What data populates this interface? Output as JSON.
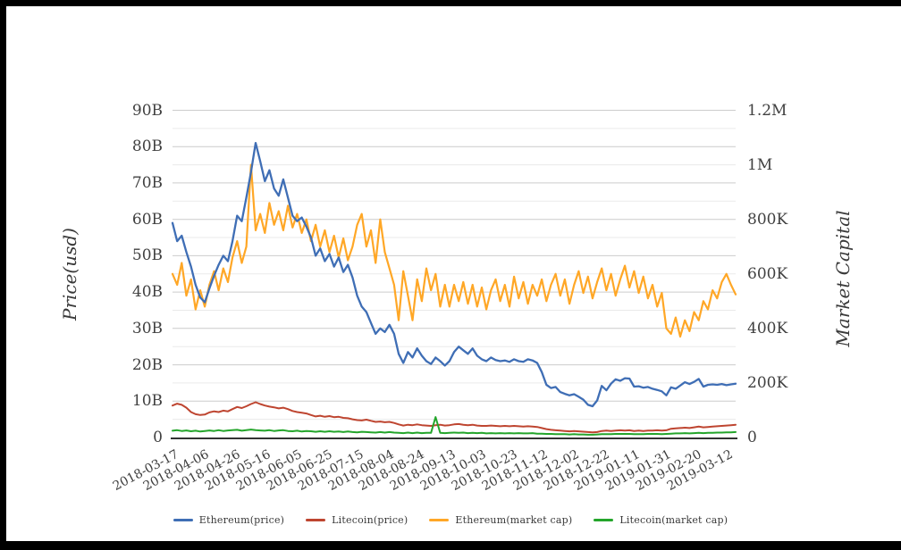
{
  "page": {
    "background": "#ffffff",
    "frame_color": "#000000"
  },
  "chart_data": {
    "type": "line",
    "title": "",
    "x_axis": {
      "start_date": "2018-03-17",
      "end_date": "2019-03-12",
      "tick_interval_days": 20,
      "tick_labels": [
        "2018-03-17",
        "2018-04-06",
        "2018-04-26",
        "2018-05-16",
        "2018-06-05",
        "2018-06-25",
        "2018-07-15",
        "2018-08-04",
        "2018-08-24",
        "2018-09-13",
        "2018-10-03",
        "2018-10-23",
        "2018-11-12",
        "2018-12-02",
        "2018-12-22",
        "2019-01-11",
        "2019-01-31",
        "2019-02-20",
        "2019-03-12"
      ]
    },
    "left_axis": {
      "title": "Price(usd)",
      "max": 90,
      "unit": "B",
      "ticks": [
        {
          "v": 90,
          "label": "90B"
        },
        {
          "v": 80,
          "label": "80B"
        },
        {
          "v": 70,
          "label": "70B"
        },
        {
          "v": 60,
          "label": "60B"
        },
        {
          "v": 50,
          "label": "50B"
        },
        {
          "v": 40,
          "label": "40B"
        },
        {
          "v": 30,
          "label": "30B"
        },
        {
          "v": 20,
          "label": "20B"
        },
        {
          "v": 10,
          "label": "10B"
        },
        {
          "v": 0,
          "label": "0"
        }
      ]
    },
    "right_axis": {
      "title": "Market Capital",
      "max": 1200,
      "unit": "K",
      "ticks": [
        {
          "v": 1200,
          "label": "1.2M"
        },
        {
          "v": 1000,
          "label": "1M"
        },
        {
          "v": 800,
          "label": "800K"
        },
        {
          "v": 600,
          "label": "600K"
        },
        {
          "v": 400,
          "label": "400K"
        },
        {
          "v": 200,
          "label": "200K"
        },
        {
          "v": 0,
          "label": "0"
        }
      ]
    },
    "grid": {
      "minor_step": 5,
      "major_step": 10,
      "major_color": "#cccccc",
      "minor_color": "#eaeaea",
      "axis_line_color": "#333333"
    },
    "sample_interval_days": 3,
    "series": [
      {
        "name": "Ethereum(price)",
        "axis": "left",
        "color": "#3F6EB5",
        "width": 2.3,
        "values": [
          59,
          54,
          55.5,
          51,
          47,
          42,
          38.5,
          37.2,
          41,
          44.5,
          47.5,
          50,
          48.5,
          54,
          61,
          59.5,
          66,
          73,
          81,
          76,
          70.5,
          73.5,
          68.5,
          66.5,
          71,
          66,
          61,
          59.5,
          60.5,
          58,
          55,
          50,
          52,
          48.5,
          50.5,
          47,
          49.5,
          45.5,
          47.5,
          44,
          39,
          36,
          34.5,
          31.5,
          28.5,
          30,
          29,
          31,
          28.5,
          23,
          20.5,
          23.5,
          22,
          24.5,
          22.5,
          21,
          20.2,
          22,
          21,
          19.8,
          21,
          23.5,
          25,
          24,
          23,
          24.5,
          22.5,
          21.5,
          21,
          22,
          21.3,
          21,
          21.2,
          20.8,
          21.5,
          21,
          20.8,
          21.5,
          21.2,
          20.5,
          18,
          14.5,
          13.6,
          13.9,
          12.5,
          12,
          11.6,
          11.9,
          11.2,
          10.4,
          9,
          8.6,
          10.2,
          14.2,
          13,
          14.8,
          16,
          15.6,
          16.3,
          16.2,
          14,
          14.1,
          13.7,
          13.9,
          13.4,
          13.1,
          12.7,
          11.6,
          13.8,
          13.4,
          14.3,
          15.2,
          14.7,
          15.3,
          16.1,
          14,
          14.5,
          14.6,
          14.5,
          14.7,
          14.4,
          14.6,
          14.8
        ]
      },
      {
        "name": "Litecoin(price)",
        "axis": "left",
        "color": "#BE4530",
        "width": 2,
        "values": [
          8.8,
          9.3,
          9,
          8.2,
          7,
          6.4,
          6.2,
          6.3,
          6.9,
          7.2,
          7,
          7.4,
          7.2,
          7.8,
          8.4,
          8.1,
          8.6,
          9.2,
          9.7,
          9.2,
          8.8,
          8.5,
          8.3,
          8,
          8.2,
          7.8,
          7.3,
          7,
          6.8,
          6.6,
          6.2,
          5.8,
          6,
          5.7,
          5.9,
          5.6,
          5.7,
          5.4,
          5.3,
          5,
          4.8,
          4.7,
          4.9,
          4.6,
          4.3,
          4.4,
          4.2,
          4.3,
          4,
          3.6,
          3.3,
          3.5,
          3.4,
          3.6,
          3.4,
          3.3,
          3.2,
          3.4,
          3.5,
          3.3,
          3.4,
          3.6,
          3.7,
          3.5,
          3.4,
          3.5,
          3.3,
          3.2,
          3.2,
          3.3,
          3.2,
          3.1,
          3.2,
          3.1,
          3.2,
          3.1,
          3,
          3.1,
          3,
          2.9,
          2.6,
          2.3,
          2.1,
          2,
          1.9,
          1.8,
          1.7,
          1.8,
          1.7,
          1.6,
          1.5,
          1.4,
          1.5,
          1.8,
          1.9,
          1.8,
          1.9,
          2,
          1.9,
          2,
          1.8,
          1.9,
          1.8,
          1.9,
          1.9,
          2,
          1.9,
          2,
          2.4,
          2.5,
          2.6,
          2.7,
          2.6,
          2.8,
          3,
          2.8,
          2.9,
          3,
          3.1,
          3.2,
          3.3,
          3.4,
          3.5
        ]
      },
      {
        "name": "Ethereum(market cap)",
        "axis": "right",
        "color": "#FFA726",
        "width": 2.2,
        "values": [
          600,
          560,
          640,
          520,
          580,
          470,
          540,
          480,
          560,
          610,
          540,
          620,
          570,
          660,
          720,
          640,
          700,
          1000,
          760,
          820,
          750,
          860,
          780,
          830,
          760,
          850,
          770,
          820,
          750,
          800,
          720,
          780,
          700,
          760,
          680,
          740,
          660,
          730,
          650,
          700,
          780,
          820,
          700,
          760,
          640,
          800,
          680,
          620,
          560,
          430,
          610,
          520,
          430,
          580,
          500,
          620,
          540,
          600,
          480,
          560,
          480,
          560,
          500,
          570,
          490,
          560,
          480,
          550,
          470,
          540,
          580,
          500,
          560,
          480,
          590,
          510,
          570,
          490,
          560,
          520,
          580,
          500,
          560,
          600,
          520,
          580,
          490,
          560,
          610,
          530,
          590,
          510,
          570,
          620,
          540,
          600,
          520,
          580,
          630,
          550,
          610,
          530,
          590,
          510,
          560,
          480,
          530,
          400,
          380,
          440,
          370,
          430,
          390,
          460,
          430,
          500,
          470,
          540,
          510,
          570,
          600,
          560,
          525
        ]
      },
      {
        "name": "Litecoin(market cap)",
        "axis": "right",
        "color": "#24A52B",
        "width": 2,
        "values": [
          25,
          27,
          24,
          26,
          23,
          25,
          22,
          24,
          26,
          24,
          27,
          24,
          26,
          27,
          28,
          25,
          27,
          29,
          27,
          26,
          25,
          27,
          24,
          26,
          27,
          24,
          23,
          25,
          22,
          24,
          23,
          21,
          23,
          21,
          23,
          21,
          22,
          20,
          22,
          20,
          19,
          21,
          20,
          19,
          18,
          20,
          18,
          20,
          18,
          17,
          16,
          18,
          16,
          18,
          16,
          17,
          17,
          75,
          17,
          16,
          17,
          18,
          17,
          18,
          16,
          17,
          16,
          17,
          15,
          16,
          15,
          16,
          15,
          16,
          15,
          16,
          15,
          15,
          16,
          14,
          14,
          13,
          13,
          12,
          12,
          12,
          11,
          12,
          11,
          11,
          10,
          10,
          11,
          12,
          12,
          12,
          13,
          13,
          13,
          13,
          12,
          12,
          12,
          13,
          13,
          13,
          12,
          13,
          14,
          15,
          15,
          16,
          15,
          16,
          17,
          16,
          17,
          17,
          18,
          18,
          19,
          19,
          20
        ]
      }
    ],
    "legend_position": "bottom",
    "draw_order": [
      2,
      1,
      3,
      0
    ]
  }
}
